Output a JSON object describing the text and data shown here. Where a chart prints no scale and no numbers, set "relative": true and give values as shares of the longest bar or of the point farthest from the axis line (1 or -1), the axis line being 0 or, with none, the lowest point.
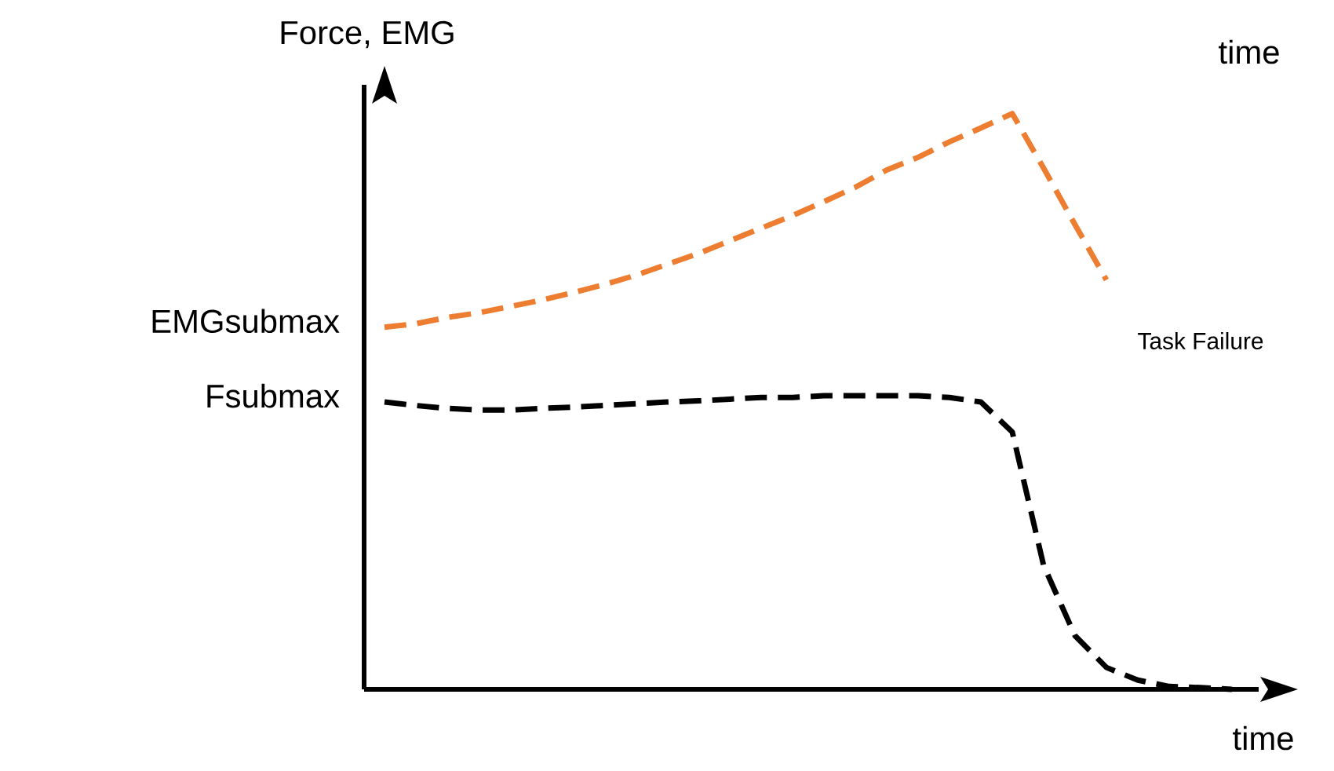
{
  "chart_data": {
    "type": "line",
    "relative": true,
    "ylabel": "Force, EMG",
    "xlabel": "time",
    "line_style": "dashed",
    "marker": "none",
    "tick_labels": false,
    "categories": [
      null,
      null,
      null,
      null,
      null,
      null,
      null,
      null,
      null,
      null,
      null,
      null,
      null,
      null,
      null,
      null,
      null,
      null,
      null,
      null,
      null,
      null,
      null,
      null,
      null,
      null,
      null,
      null
    ],
    "series": [
      {
        "name": "EMGsubmax",
        "color": "#ed7d31",
        "values": [
          0.629,
          0.635,
          0.646,
          0.654,
          0.665,
          0.676,
          0.689,
          0.703,
          0.719,
          0.738,
          0.757,
          0.779,
          0.801,
          0.823,
          0.847,
          0.872,
          0.902,
          0.924,
          0.951,
          0.975,
          1,
          0.905,
          0.807,
          0.711,
          null,
          null,
          null,
          null
        ]
      },
      {
        "name": "Fsubmax",
        "color": "#000000",
        "values": [
          0.499,
          0.493,
          0.488,
          0.485,
          0.485,
          0.488,
          0.49,
          0.493,
          0.496,
          0.499,
          0.501,
          0.504,
          0.507,
          0.507,
          0.51,
          0.51,
          0.51,
          0.51,
          0.507,
          0.499,
          0.447,
          0.215,
          0.093,
          0.038,
          0.016,
          0.005,
          0.003,
          0
        ]
      }
    ],
    "annotations": [
      "time",
      "Task Failure"
    ]
  }
}
